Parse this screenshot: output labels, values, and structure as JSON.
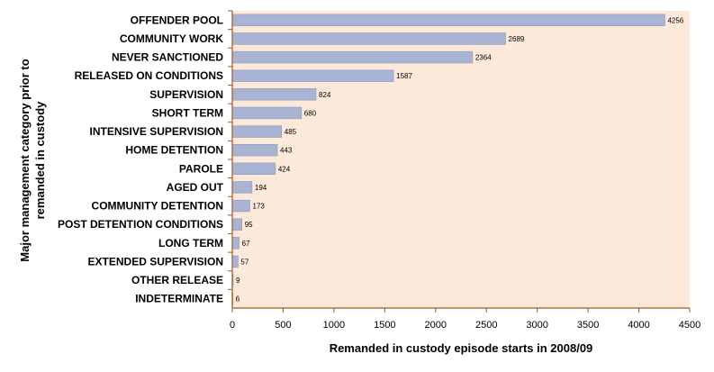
{
  "chart_data": {
    "type": "bar",
    "orientation": "horizontal",
    "title": "",
    "xlabel": "Remanded in custody episode starts in 2008/09",
    "ylabel": "Major management category prior to remanded in custody",
    "categories": [
      "OFFENDER POOL",
      "COMMUNITY WORK",
      "NEVER SANCTIONED",
      "RELEASED ON CONDITIONS",
      "SUPERVISION",
      "SHORT TERM",
      "INTENSIVE SUPERVISION",
      "HOME DETENTION",
      "PAROLE",
      "AGED OUT",
      "COMMUNITY DETENTION",
      "POST DETENTION CONDITIONS",
      "LONG TERM",
      "EXTENDED SUPERVISION",
      "OTHER RELEASE",
      "INDETERMINATE"
    ],
    "values": [
      4256,
      2689,
      2364,
      1587,
      824,
      680,
      485,
      443,
      424,
      194,
      173,
      95,
      67,
      57,
      9,
      6
    ],
    "xlim": [
      0,
      4500
    ],
    "xticks": [
      0,
      500,
      1000,
      1500,
      2000,
      2500,
      3000,
      3500,
      4000,
      4500
    ],
    "grid": false,
    "legend": "none",
    "colors": {
      "plot_background": "#fde9d9",
      "bar": "#a9b3d3",
      "bar_edge": "#8f99bb",
      "axis": "#a05a1e"
    }
  }
}
